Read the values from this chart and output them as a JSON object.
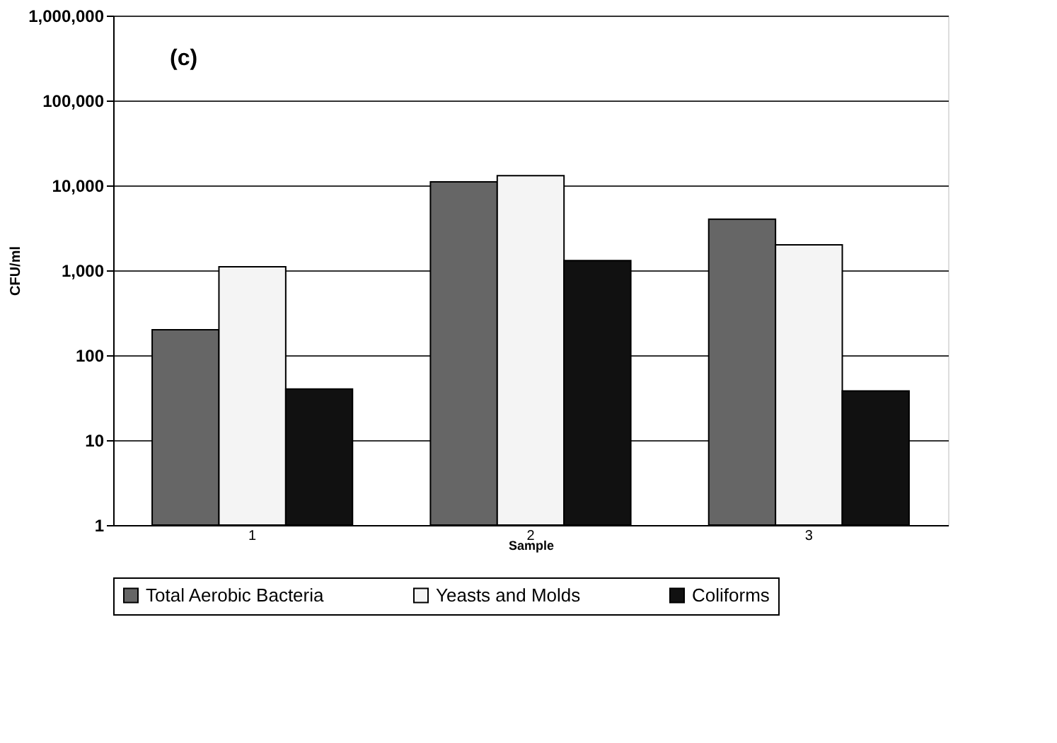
{
  "chart_data": {
    "type": "bar",
    "xlabel": "Sample",
    "ylabel": "CFU/ml",
    "annotations": [
      "(c)"
    ],
    "categories": [
      "1",
      "2",
      "3"
    ],
    "series": [
      {
        "name": "Total Aerobic Bacteria",
        "color": "#666666",
        "values": [
          200,
          11000,
          4000
        ]
      },
      {
        "name": "Yeasts and Molds",
        "color": "#f4f4f4",
        "values": [
          1100,
          13000,
          2000
        ]
      },
      {
        "name": "Coliforms",
        "color": "#111111",
        "values": [
          40,
          1300,
          38
        ]
      }
    ],
    "log": "y",
    "ylim": [
      1,
      1000000
    ],
    "yticks": [
      1,
      10,
      100,
      {
        "value": 1000,
        "label": "1,000"
      },
      {
        "value": 10000,
        "label": "10,000"
      },
      {
        "value": 100000,
        "label": "100,000"
      },
      {
        "value": 1000000,
        "label": "1,000,000"
      }
    ],
    "grid": "y",
    "legend": "bottom"
  }
}
